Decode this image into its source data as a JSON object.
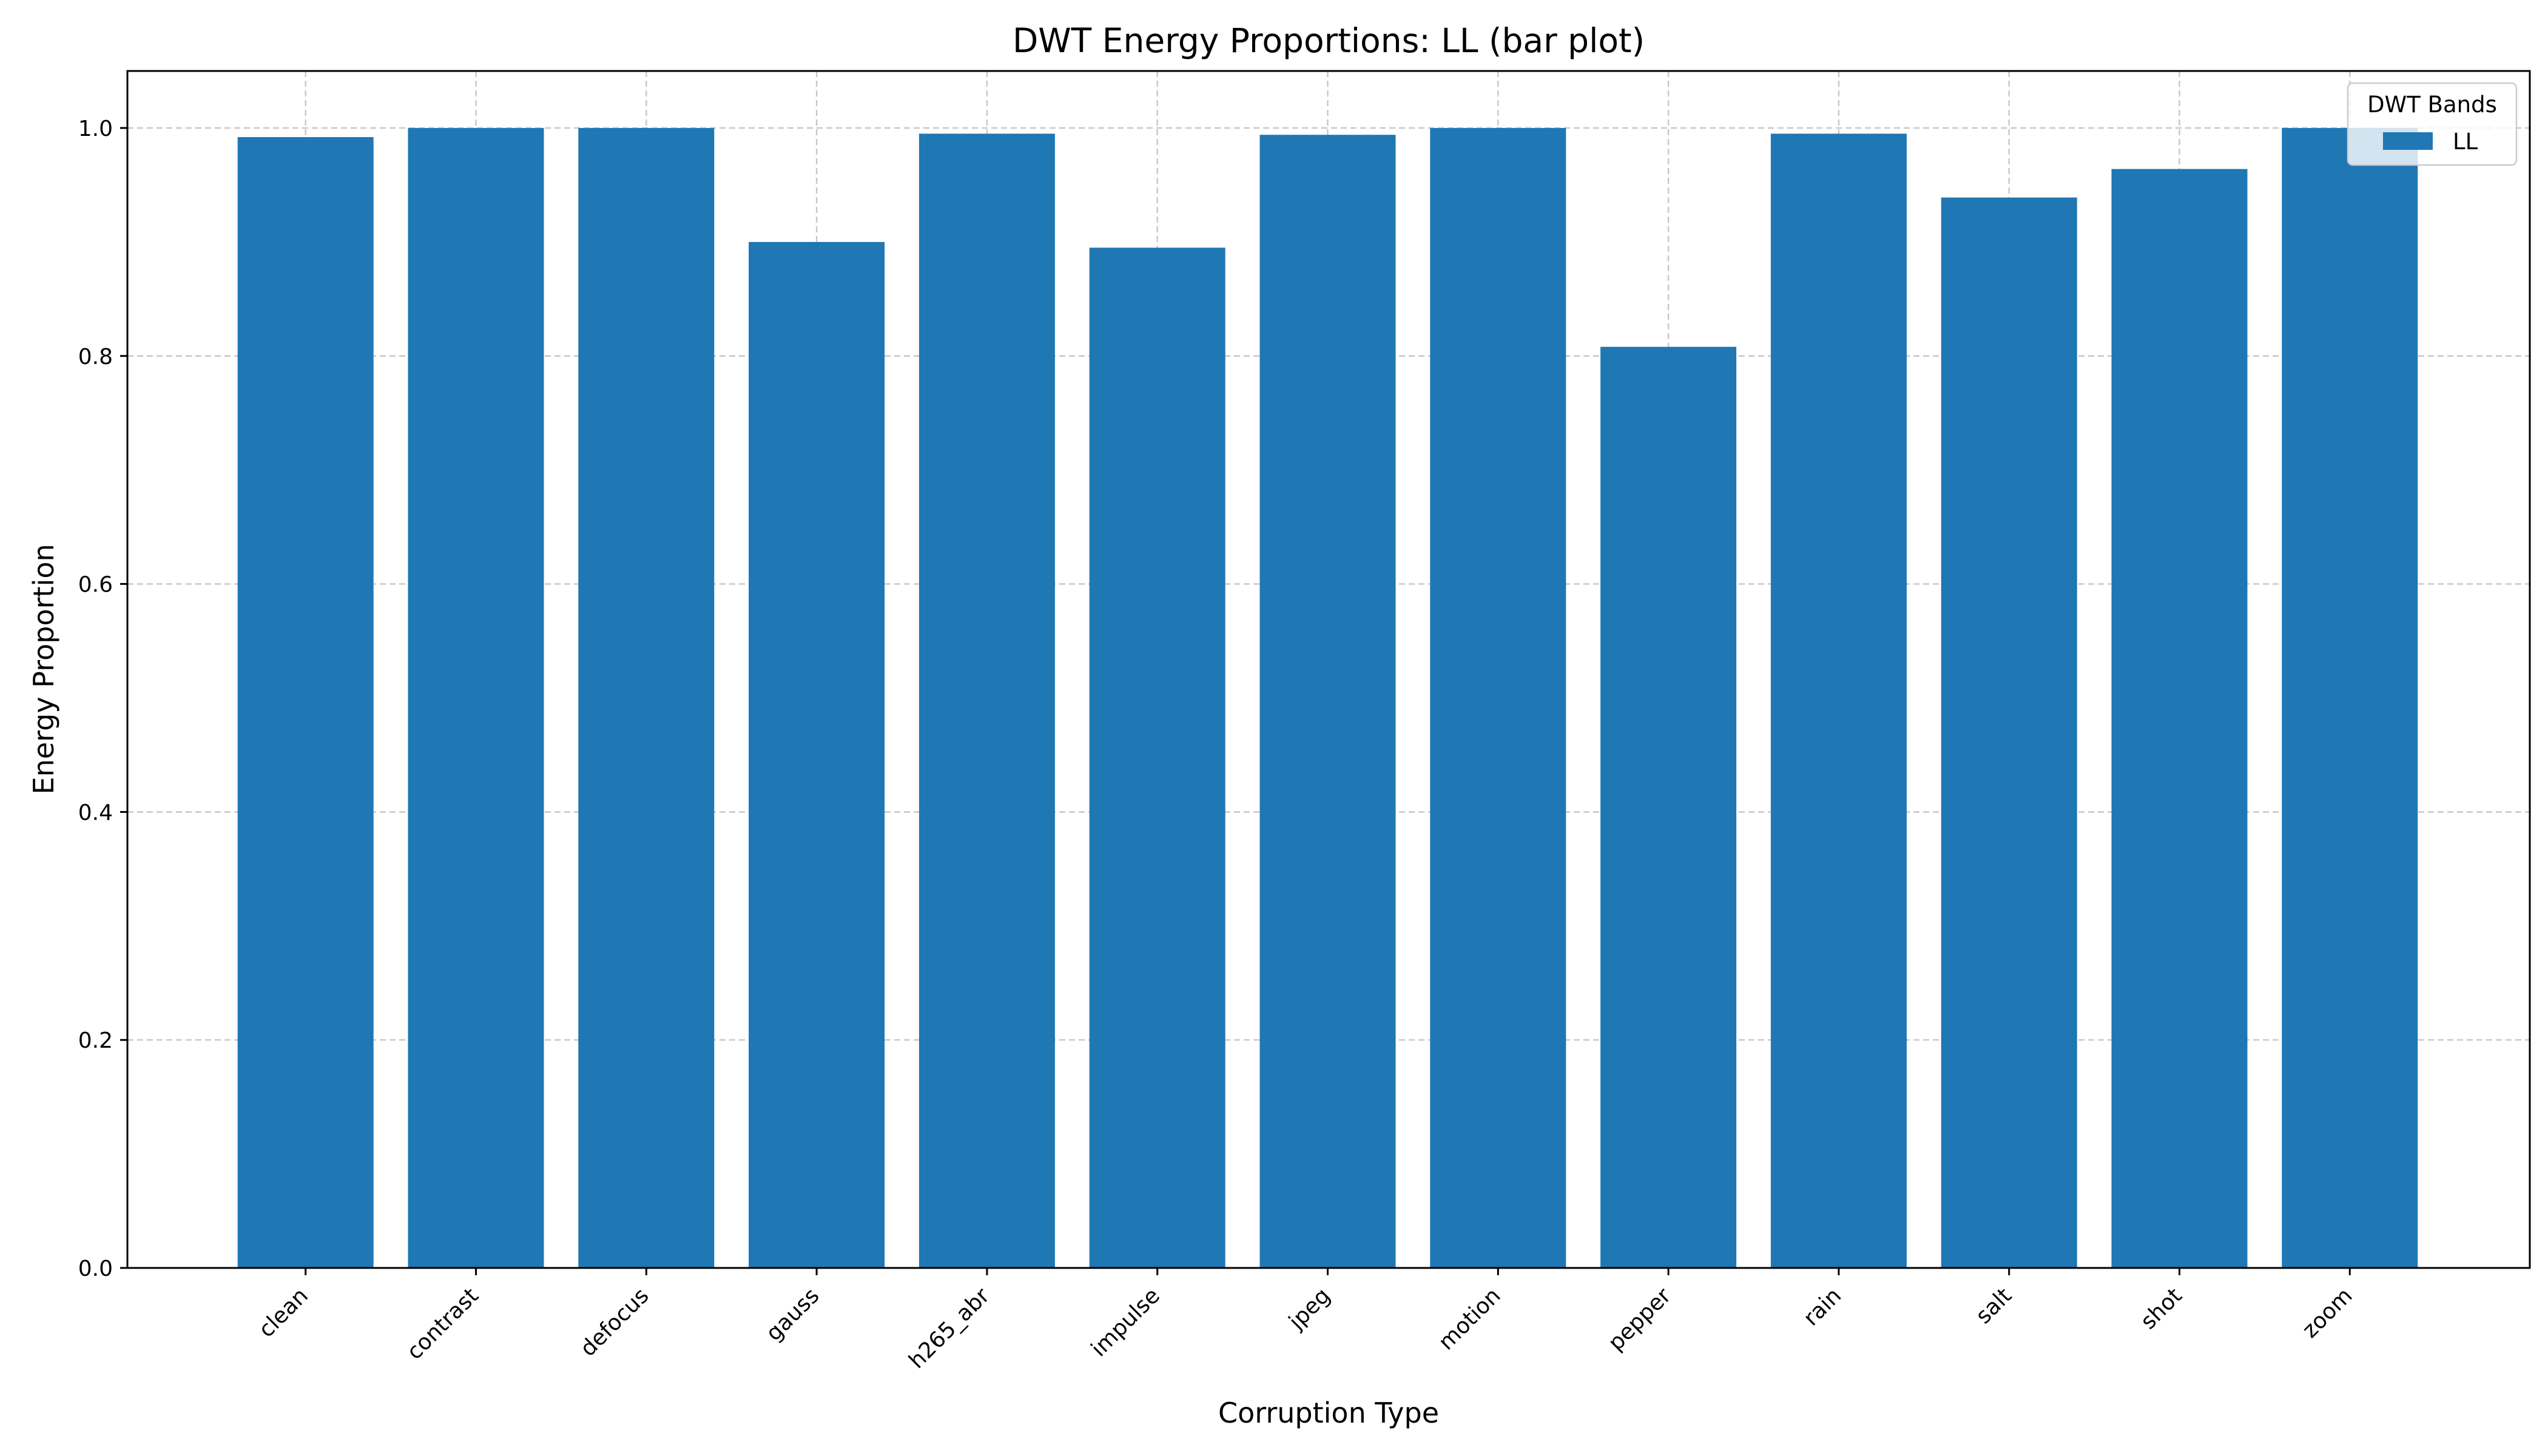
{
  "chart_data": {
    "type": "bar",
    "title": "DWT Energy Proportions: LL (bar plot)",
    "xlabel": "Corruption Type",
    "ylabel": "Energy Proportion",
    "categories": [
      "clean",
      "contrast",
      "defocus",
      "gauss",
      "h265_abr",
      "impulse",
      "jpeg",
      "motion",
      "pepper",
      "rain",
      "salt",
      "shot",
      "zoom"
    ],
    "series": [
      {
        "name": "LL",
        "color": "#1f77b4",
        "values": [
          0.992,
          1.0,
          1.0,
          0.9,
          0.995,
          0.895,
          0.994,
          1.0,
          0.808,
          0.995,
          0.939,
          0.964,
          1.0
        ]
      }
    ],
    "ylim": [
      0,
      1.05
    ],
    "yticks": [
      "0.0",
      "0.2",
      "0.4",
      "0.6",
      "0.8",
      "1.0"
    ],
    "grid": true,
    "legend": {
      "title": "DWT Bands",
      "placement": "top-right"
    }
  }
}
